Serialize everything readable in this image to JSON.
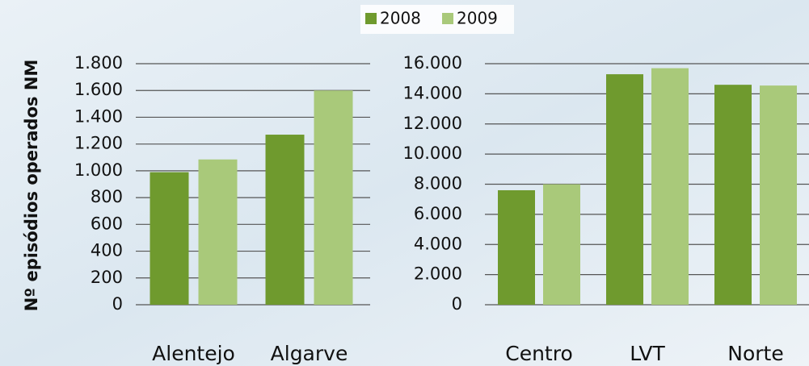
{
  "chart_data": [
    {
      "type": "bar",
      "ylabel": "Nº episódios  operados NM",
      "categories": [
        "Alentejo",
        "Algarve"
      ],
      "series": [
        {
          "name": "2008",
          "color": "#6f9a2e",
          "values": [
            990,
            1270
          ]
        },
        {
          "name": "2009",
          "color": "#a9c97a",
          "values": [
            1085,
            1600
          ]
        }
      ],
      "ylim": [
        0,
        1800
      ],
      "yticks": [
        0,
        200,
        400,
        600,
        800,
        {
          "value": 1000,
          "label": "1.000"
        },
        {
          "value": 1200,
          "label": "1.200"
        },
        {
          "value": 1400,
          "label": "1.400"
        },
        {
          "value": 1600,
          "label": "1.600"
        },
        {
          "value": 1800,
          "label": "1.800"
        }
      ],
      "grid": true,
      "legend": "top"
    },
    {
      "type": "bar",
      "categories": [
        "Centro",
        "LVT",
        "Norte"
      ],
      "series": [
        {
          "color": "#6f9a2e",
          "values": [
            7600,
            15300,
            14600
          ]
        },
        {
          "color": "#a9c97a",
          "values": [
            8000,
            15700,
            14550
          ]
        }
      ],
      "ylim": [
        0,
        16000
      ],
      "yticks": [
        0,
        {
          "value": 2000,
          "label": "2.000"
        },
        {
          "value": 4000,
          "label": "4.000"
        },
        {
          "value": 6000,
          "label": "6.000"
        },
        {
          "value": 8000,
          "label": "8.000"
        },
        {
          "value": 10000,
          "label": "10.000"
        },
        {
          "value": 12000,
          "label": "12.000"
        },
        {
          "value": 14000,
          "label": "14.000"
        },
        {
          "value": 16000,
          "label": "16.000"
        }
      ],
      "grid": true
    }
  ]
}
